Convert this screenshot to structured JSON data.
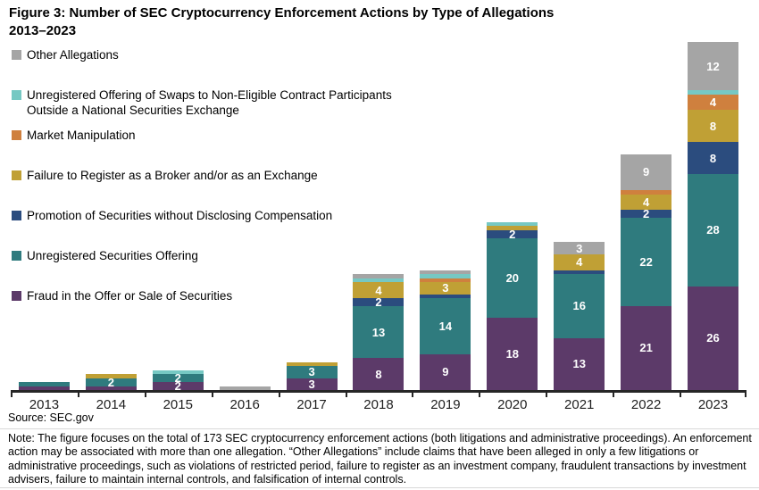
{
  "figure": {
    "title_line1": "Figure 3: Number of SEC Cryptocurrency Enforcement Actions by Type of Allegations",
    "title_line2": "2013–2023"
  },
  "chart_data": {
    "type": "bar",
    "stacked": true,
    "title": "Figure 3: Number of SEC Cryptocurrency Enforcement Actions by Type of Allegations 2013–2023",
    "xlabel": "",
    "ylabel": "",
    "grid": false,
    "legend_position": "upper-left",
    "axis_color": "#262626",
    "segment_label_rule": "white bold label shown on segment when value >= 2",
    "categories": [
      "2013",
      "2014",
      "2015",
      "2016",
      "2017",
      "2018",
      "2019",
      "2020",
      "2021",
      "2022",
      "2023"
    ],
    "series": [
      {
        "name": "Fraud in the Offer or Sale of Securities",
        "color": "#5C3A69",
        "values": [
          1,
          1,
          2,
          0,
          3,
          8,
          9,
          18,
          13,
          21,
          26
        ]
      },
      {
        "name": "Unregistered Securities Offering",
        "color": "#2F7B7E",
        "values": [
          1,
          2,
          2,
          0,
          3,
          13,
          14,
          20,
          16,
          22,
          28
        ]
      },
      {
        "name": "Promotion of Securities without Disclosing Compensation",
        "color": "#2B4C7E",
        "values": [
          0,
          0,
          0,
          0,
          0,
          2,
          1,
          2,
          1,
          2,
          8
        ]
      },
      {
        "name": "Failure to Register as a Broker and/or as an Exchange",
        "color": "#C0A035",
        "values": [
          0,
          1,
          0,
          0,
          1,
          4,
          3,
          1,
          4,
          4,
          8
        ]
      },
      {
        "name": "Market Manipulation",
        "color": "#CF803E",
        "values": [
          0,
          0,
          0,
          0,
          0,
          0,
          1,
          0,
          0,
          1,
          4
        ]
      },
      {
        "name": "Unregistered Offering of Swaps to Non-Eligible Contract Participants Outside a National Securities Exchange",
        "color": "#76C8C3",
        "values": [
          0,
          0,
          1,
          0,
          0,
          1,
          1,
          1,
          0,
          0,
          1
        ]
      },
      {
        "name": "Other Allegations",
        "color": "#A5A5A5",
        "values": [
          0,
          0,
          0,
          1,
          0,
          1,
          1,
          0,
          3,
          9,
          12
        ]
      }
    ],
    "totals_by_year": [
      2,
      4,
      5,
      1,
      7,
      29,
      30,
      42,
      37,
      59,
      87
    ]
  },
  "footer": {
    "source": "Source: SEC.gov",
    "note": "Note: The figure focuses on the total of 173 SEC cryptocurrency enforcement actions (both litigations and administrative proceedings). An enforcement action may be associated with more than one allegation. “Other Allegations” include claims that have been alleged in only a few litigations or administrative proceedings, such as violations of restricted period, failure to register as an investment company, fraudulent transactions by investment advisers, failure to maintain internal controls, and falsification of internal controls."
  }
}
